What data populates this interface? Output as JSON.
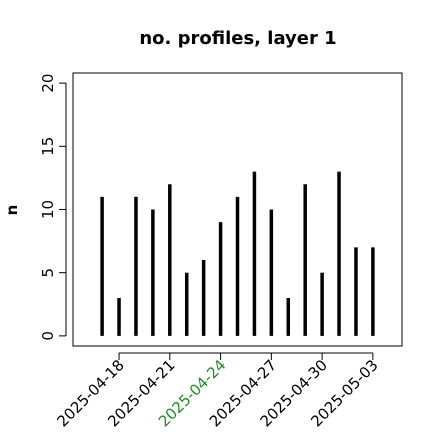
{
  "chart_data": {
    "type": "spike",
    "title": "no. profiles, layer 1",
    "y_label": "n",
    "x": [
      "2025-04-17",
      "2025-04-18",
      "2025-04-19",
      "2025-04-20",
      "2025-04-21",
      "2025-04-22",
      "2025-04-23",
      "2025-04-24",
      "2025-04-25",
      "2025-04-26",
      "2025-04-27",
      "2025-04-28",
      "2025-04-29",
      "2025-04-30",
      "2025-05-01",
      "2025-05-02",
      "2025-05-03"
    ],
    "values": [
      11,
      3,
      11,
      10,
      12,
      5,
      6,
      9,
      11,
      13,
      10,
      3,
      12,
      5,
      13,
      7,
      7
    ],
    "color": "#000000",
    "xlim": [
      "2025-04-15T06:43Z",
      "2025-05-04T17:17Z"
    ],
    "xticks": [
      "2025-04-18",
      "2025-04-21",
      "2025-04-24",
      "2025-04-27",
      "2025-04-30",
      "2025-05-03"
    ],
    "xtick_colors": [
      "#000000",
      "#000000",
      "#228b22",
      "#000000",
      "#000000",
      "#000000"
    ],
    "ylim": [
      -0.8,
      20.8
    ],
    "yticks": [
      0,
      5,
      10,
      15,
      20
    ]
  }
}
